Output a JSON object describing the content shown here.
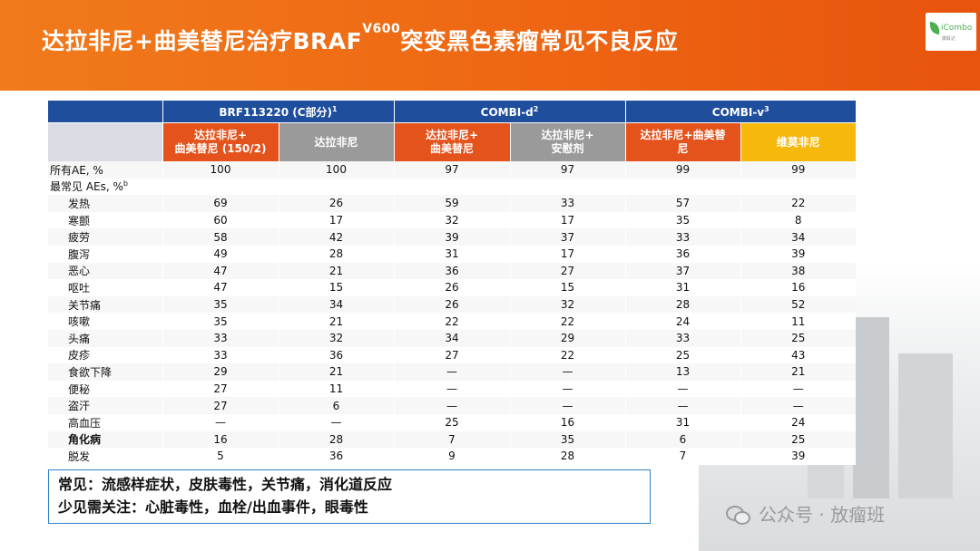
{
  "header": {
    "title_main": "达拉非尼+曲美替尼治疗BRAF",
    "title_sup": "V600",
    "title_tail": "突变黑色素瘤常见不良反应"
  },
  "logo": {
    "text": "iCombo",
    "sub": "康联达"
  },
  "table": {
    "groups": [
      {
        "label": "BRF113220 (C部分)",
        "sup": "1"
      },
      {
        "label": "COMBI-d",
        "sup": "2"
      },
      {
        "label": "COMBI-v",
        "sup": "3"
      }
    ],
    "arms": [
      {
        "line1": "达拉非尼+",
        "line2": "曲美替尼 (150/2)",
        "kind": "drug"
      },
      {
        "line1": "达拉非尼",
        "line2": "",
        "kind": "ctrl"
      },
      {
        "line1": "达拉非尼+",
        "line2": "曲美替尼",
        "kind": "drug"
      },
      {
        "line1": "达拉非尼+",
        "line2": "安慰剂",
        "kind": "ctrl"
      },
      {
        "line1": "达拉非尼+曲美替",
        "line2": "尼",
        "kind": "drug"
      },
      {
        "line1": "维莫非尼",
        "line2": "",
        "kind": "vem"
      }
    ],
    "rows": [
      {
        "label": "所有AE, %",
        "indent": false,
        "bold": false,
        "values": [
          "100",
          "100",
          "97",
          "97",
          "99",
          "99"
        ]
      },
      {
        "label": "最常见 AEs, %",
        "sup": "b",
        "indent": false,
        "bold": false,
        "values": [
          "",
          "",
          "",
          "",
          "",
          ""
        ]
      },
      {
        "label": "发热",
        "indent": true,
        "bold": false,
        "values": [
          "69",
          "26",
          "59",
          "33",
          "57",
          "22"
        ]
      },
      {
        "label": "寒颤",
        "indent": true,
        "bold": false,
        "values": [
          "60",
          "17",
          "32",
          "17",
          "35",
          "8"
        ]
      },
      {
        "label": "疲劳",
        "indent": true,
        "bold": false,
        "values": [
          "58",
          "42",
          "39",
          "37",
          "33",
          "34"
        ]
      },
      {
        "label": "腹泻",
        "indent": true,
        "bold": false,
        "values": [
          "49",
          "28",
          "31",
          "17",
          "36",
          "39"
        ]
      },
      {
        "label": "恶心",
        "indent": true,
        "bold": false,
        "values": [
          "47",
          "21",
          "36",
          "27",
          "37",
          "38"
        ]
      },
      {
        "label": "呕吐",
        "indent": true,
        "bold": false,
        "values": [
          "47",
          "15",
          "26",
          "15",
          "31",
          "16"
        ]
      },
      {
        "label": "关节痛",
        "indent": true,
        "bold": false,
        "values": [
          "35",
          "34",
          "26",
          "32",
          "28",
          "52"
        ]
      },
      {
        "label": "咳嗽",
        "indent": true,
        "bold": false,
        "values": [
          "35",
          "21",
          "22",
          "22",
          "24",
          "11"
        ]
      },
      {
        "label": "头痛",
        "indent": true,
        "bold": false,
        "values": [
          "33",
          "32",
          "34",
          "29",
          "33",
          "25"
        ]
      },
      {
        "label": "皮疹",
        "indent": true,
        "bold": false,
        "values": [
          "33",
          "36",
          "27",
          "22",
          "25",
          "43"
        ]
      },
      {
        "label": "食欲下降",
        "indent": true,
        "bold": false,
        "values": [
          "29",
          "21",
          "—",
          "—",
          "13",
          "21"
        ]
      },
      {
        "label": "便秘",
        "indent": true,
        "bold": false,
        "values": [
          "27",
          "11",
          "—",
          "—",
          "—",
          "—"
        ]
      },
      {
        "label": "盗汗",
        "indent": true,
        "bold": false,
        "values": [
          "27",
          "6",
          "—",
          "—",
          "—",
          "—"
        ]
      },
      {
        "label": "高血压",
        "indent": true,
        "bold": false,
        "values": [
          "—",
          "—",
          "25",
          "16",
          "31",
          "24"
        ]
      },
      {
        "label": "角化病",
        "indent": true,
        "bold": true,
        "values": [
          "16",
          "28",
          "7",
          "35",
          "6",
          "25"
        ]
      },
      {
        "label": "脱发",
        "indent": true,
        "bold": false,
        "values": [
          "5",
          "36",
          "9",
          "28",
          "7",
          "39"
        ]
      }
    ]
  },
  "callout": {
    "line1": "常见：流感样症状，皮肤毒性，关节痛，消化道反应",
    "line2": "少见需关注：心脏毒性，血栓/出血事件，眼毒性"
  },
  "watermark": {
    "text": "公众号 · 放瘤班",
    "icon": "wechat-icon"
  }
}
